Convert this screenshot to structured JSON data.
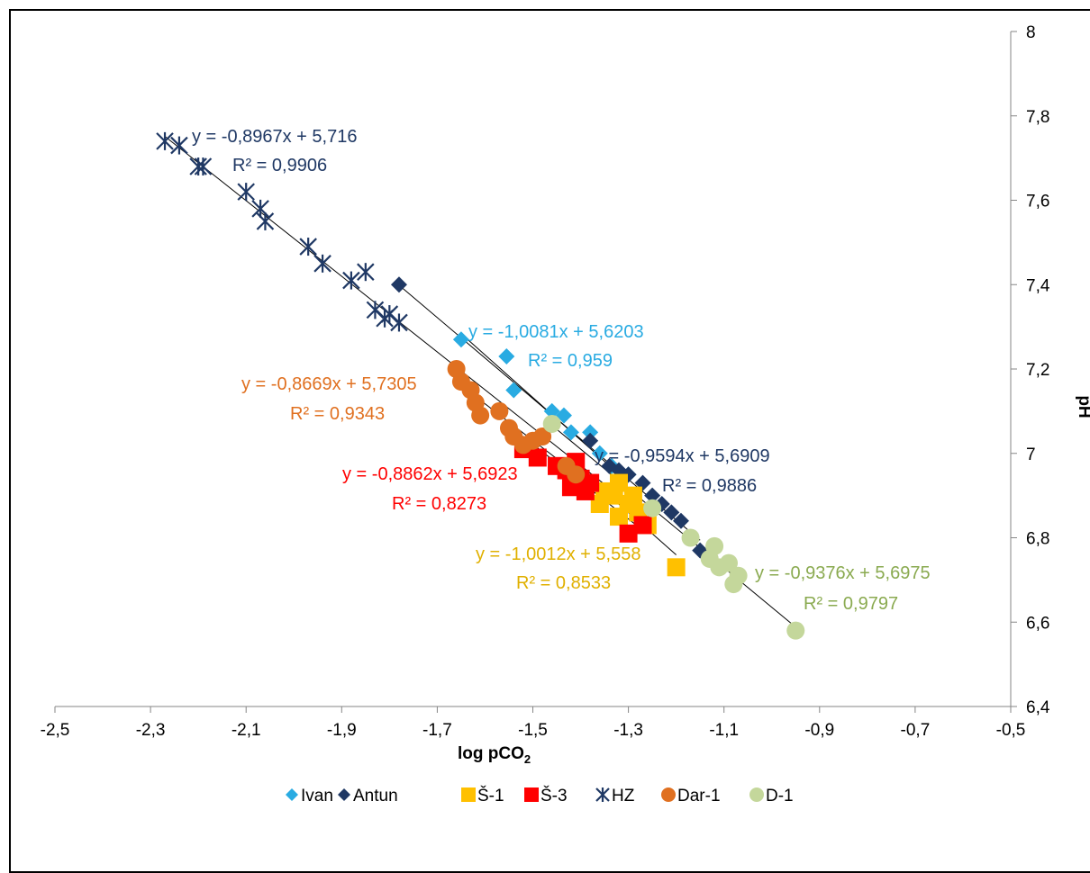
{
  "chart_data": {
    "type": "scatter",
    "title": "",
    "xlabel": "log pCO₂",
    "ylabel": "pH",
    "xlim": [
      -2.5,
      -0.5
    ],
    "ylim": [
      6.4,
      8.0
    ],
    "x_ticks": [
      "-2,5",
      "-2,3",
      "-2,1",
      "-1,9",
      "-1,7",
      "-1,5",
      "-1,3",
      "-1,1",
      "-0,9",
      "-0,7",
      "-0,5"
    ],
    "y_ticks": [
      "6,4",
      "6,6",
      "6,8",
      "7",
      "7,2",
      "7,4",
      "7,6",
      "7,8",
      "8"
    ],
    "y_axis_side": "right",
    "legend_position": "bottom",
    "series": [
      {
        "name": "Ivan",
        "color": "#29abe2",
        "marker": "diamond",
        "trend": {
          "slope": -1.0081,
          "intercept": 5.6203,
          "x_range": [
            -1.65,
            -1.3
          ]
        },
        "equation": "y = -1,0081x + 5,6203",
        "r2": "R² = 0,959",
        "points": [
          [
            -1.65,
            7.27
          ],
          [
            -1.555,
            7.23
          ],
          [
            -1.54,
            7.15
          ],
          [
            -1.46,
            7.1
          ],
          [
            -1.435,
            7.09
          ],
          [
            -1.42,
            7.05
          ],
          [
            -1.38,
            7.05
          ],
          [
            -1.36,
            7.0
          ],
          [
            -1.335,
            6.97
          ],
          [
            -1.3,
            6.95
          ]
        ]
      },
      {
        "name": "Antun",
        "color": "#1f3864",
        "marker": "diamond",
        "trend": {
          "slope": -0.9594,
          "intercept": 5.6909,
          "x_range": [
            -1.78,
            -1.15
          ]
        },
        "equation": "y = -0,9594x + 5,6909",
        "r2": "R² = 0,9886",
        "points": [
          [
            -1.78,
            7.4
          ],
          [
            -1.38,
            7.03
          ],
          [
            -1.34,
            6.97
          ],
          [
            -1.32,
            6.96
          ],
          [
            -1.3,
            6.95
          ],
          [
            -1.27,
            6.93
          ],
          [
            -1.25,
            6.9
          ],
          [
            -1.23,
            6.88
          ],
          [
            -1.21,
            6.86
          ],
          [
            -1.19,
            6.84
          ],
          [
            -1.15,
            6.77
          ]
        ]
      },
      {
        "name": "Š-1",
        "color": "#ffc000",
        "marker": "square",
        "trend": {
          "slope": -1.0012,
          "intercept": 5.558,
          "x_range": [
            -1.42,
            -1.2
          ]
        },
        "equation": "y = -1,0012x + 5,558",
        "r2": "R² = 0,8533",
        "points": [
          [
            -1.35,
            6.91
          ],
          [
            -1.33,
            6.9
          ],
          [
            -1.32,
            6.93
          ],
          [
            -1.3,
            6.88
          ],
          [
            -1.28,
            6.86
          ],
          [
            -1.26,
            6.83
          ],
          [
            -1.2,
            6.73
          ],
          [
            -1.36,
            6.88
          ],
          [
            -1.32,
            6.85
          ],
          [
            -1.29,
            6.9
          ]
        ]
      },
      {
        "name": "Š-3",
        "color": "#ff0000",
        "marker": "square",
        "trend": {
          "slope": -0.8862,
          "intercept": 5.6923,
          "x_range": [
            -1.55,
            -1.27
          ]
        },
        "equation": "y = -0,8862x + 5,6923",
        "r2": "R² = 0,8273",
        "points": [
          [
            -1.52,
            7.01
          ],
          [
            -1.49,
            6.99
          ],
          [
            -1.45,
            6.97
          ],
          [
            -1.43,
            6.96
          ],
          [
            -1.41,
            6.98
          ],
          [
            -1.4,
            6.94
          ],
          [
            -1.38,
            6.93
          ],
          [
            -1.42,
            6.92
          ],
          [
            -1.39,
            6.91
          ],
          [
            -1.3,
            6.81
          ],
          [
            -1.27,
            6.83
          ]
        ]
      },
      {
        "name": "HZ",
        "color": "#1f3864",
        "marker": "asterisk",
        "trend": {
          "slope": -0.8967,
          "intercept": 5.716,
          "x_range": [
            -2.27,
            -1.35
          ]
        },
        "equation": "y = -0,8967x + 5,716",
        "r2": "R² = 0,9906",
        "points": [
          [
            -2.27,
            7.74
          ],
          [
            -2.24,
            7.73
          ],
          [
            -2.2,
            7.68
          ],
          [
            -2.19,
            7.68
          ],
          [
            -2.1,
            7.62
          ],
          [
            -2.07,
            7.58
          ],
          [
            -2.06,
            7.55
          ],
          [
            -1.97,
            7.49
          ],
          [
            -1.94,
            7.45
          ],
          [
            -1.88,
            7.41
          ],
          [
            -1.85,
            7.43
          ],
          [
            -1.83,
            7.34
          ],
          [
            -1.81,
            7.32
          ],
          [
            -1.8,
            7.33
          ],
          [
            -1.78,
            7.31
          ]
        ]
      },
      {
        "name": "Dar-1",
        "color": "#e07020",
        "marker": "circle",
        "trend": {
          "slope": -0.8669,
          "intercept": 5.7305,
          "x_range": [
            -1.66,
            -1.38
          ]
        },
        "equation": "y = -0,8669x + 5,7305",
        "r2": "R² = 0,9343",
        "points": [
          [
            -1.66,
            7.2
          ],
          [
            -1.65,
            7.17
          ],
          [
            -1.63,
            7.15
          ],
          [
            -1.62,
            7.12
          ],
          [
            -1.61,
            7.09
          ],
          [
            -1.57,
            7.1
          ],
          [
            -1.55,
            7.06
          ],
          [
            -1.54,
            7.04
          ],
          [
            -1.52,
            7.02
          ],
          [
            -1.5,
            7.03
          ],
          [
            -1.48,
            7.04
          ],
          [
            -1.43,
            6.97
          ],
          [
            -1.41,
            6.95
          ]
        ]
      },
      {
        "name": "D-1",
        "color": "#c4d79b",
        "marker": "circle",
        "trend": {
          "slope": -0.9376,
          "intercept": 5.6975,
          "x_range": [
            -1.46,
            -0.95
          ]
        },
        "equation": "y = -0,9376x + 5,6975",
        "r2": "R² = 0,9797",
        "points": [
          [
            -1.46,
            7.07
          ],
          [
            -1.25,
            6.87
          ],
          [
            -1.17,
            6.8
          ],
          [
            -1.13,
            6.75
          ],
          [
            -1.12,
            6.78
          ],
          [
            -1.11,
            6.73
          ],
          [
            -1.09,
            6.74
          ],
          [
            -1.07,
            6.71
          ],
          [
            -1.08,
            6.69
          ],
          [
            -0.95,
            6.58
          ]
        ]
      }
    ]
  }
}
